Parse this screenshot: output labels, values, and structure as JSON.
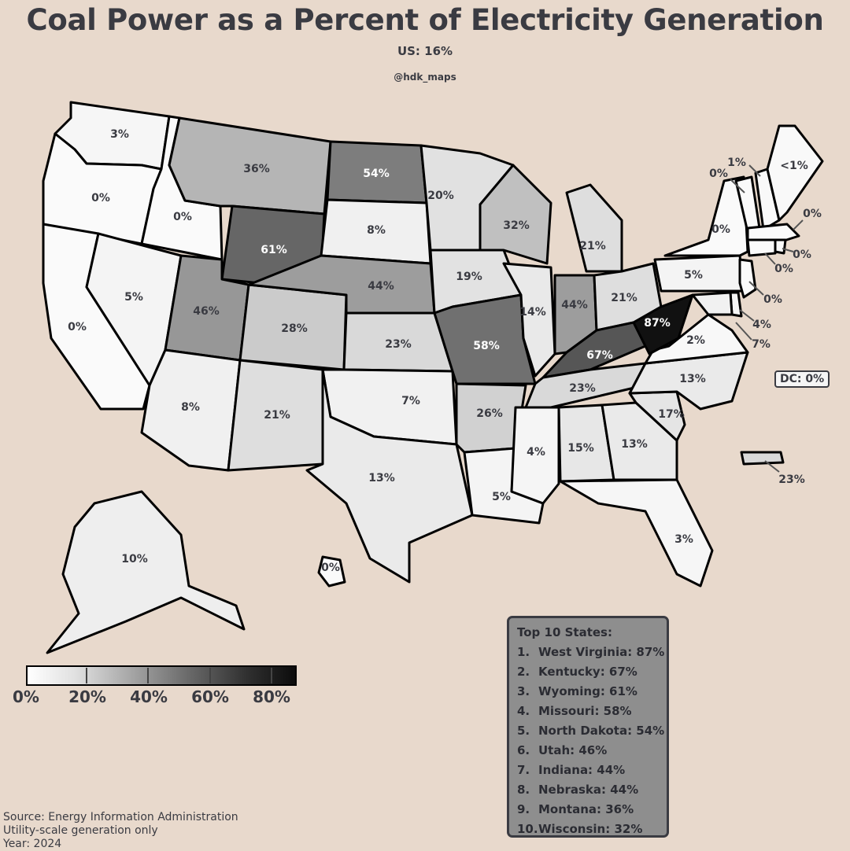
{
  "title": "Coal Power as a Percent of Electricity Generation",
  "subtitle": "US: 16%",
  "credit": "@hdk_maps",
  "dc_label": "DC: 0%",
  "states": [
    {
      "name": "Washington",
      "pct": 3,
      "label": "3%"
    },
    {
      "name": "Oregon",
      "pct": 0,
      "label": "0%"
    },
    {
      "name": "California",
      "pct": 0,
      "label": "0%"
    },
    {
      "name": "Idaho",
      "pct": 0,
      "label": "0%"
    },
    {
      "name": "Nevada",
      "pct": 5,
      "label": "5%"
    },
    {
      "name": "Montana",
      "pct": 36,
      "label": "36%"
    },
    {
      "name": "Wyoming",
      "pct": 61,
      "label": "61%"
    },
    {
      "name": "Utah",
      "pct": 46,
      "label": "46%"
    },
    {
      "name": "Arizona",
      "pct": 8,
      "label": "8%"
    },
    {
      "name": "Colorado",
      "pct": 28,
      "label": "28%"
    },
    {
      "name": "New Mexico",
      "pct": 21,
      "label": "21%"
    },
    {
      "name": "North Dakota",
      "pct": 54,
      "label": "54%"
    },
    {
      "name": "South Dakota",
      "pct": 8,
      "label": "8%"
    },
    {
      "name": "Nebraska",
      "pct": 44,
      "label": "44%"
    },
    {
      "name": "Kansas",
      "pct": 23,
      "label": "23%"
    },
    {
      "name": "Oklahoma",
      "pct": 7,
      "label": "7%"
    },
    {
      "name": "Texas",
      "pct": 13,
      "label": "13%"
    },
    {
      "name": "Minnesota",
      "pct": 20,
      "label": "20%"
    },
    {
      "name": "Iowa",
      "pct": 19,
      "label": "19%"
    },
    {
      "name": "Missouri",
      "pct": 58,
      "label": "58%"
    },
    {
      "name": "Arkansas",
      "pct": 26,
      "label": "26%"
    },
    {
      "name": "Louisiana",
      "pct": 5,
      "label": "5%"
    },
    {
      "name": "Wisconsin",
      "pct": 32,
      "label": "32%"
    },
    {
      "name": "Illinois",
      "pct": 14,
      "label": "14%"
    },
    {
      "name": "Michigan",
      "pct": 21,
      "label": "21%"
    },
    {
      "name": "Indiana",
      "pct": 44,
      "label": "44%"
    },
    {
      "name": "Ohio",
      "pct": 21,
      "label": "21%"
    },
    {
      "name": "Kentucky",
      "pct": 67,
      "label": "67%"
    },
    {
      "name": "Tennessee",
      "pct": 23,
      "label": "23%"
    },
    {
      "name": "Mississippi",
      "pct": 4,
      "label": "4%"
    },
    {
      "name": "Alabama",
      "pct": 15,
      "label": "15%"
    },
    {
      "name": "Georgia",
      "pct": 13,
      "label": "13%"
    },
    {
      "name": "Florida",
      "pct": 3,
      "label": "3%"
    },
    {
      "name": "South Carolina",
      "pct": 17,
      "label": "17%"
    },
    {
      "name": "North Carolina",
      "pct": 13,
      "label": "13%"
    },
    {
      "name": "Virginia",
      "pct": 2,
      "label": "2%"
    },
    {
      "name": "West Virginia",
      "pct": 87,
      "label": "87%"
    },
    {
      "name": "Pennsylvania",
      "pct": 5,
      "label": "5%"
    },
    {
      "name": "New York",
      "pct": 0,
      "label": "0%"
    },
    {
      "name": "Vermont",
      "pct": 0,
      "label": "0%"
    },
    {
      "name": "New Hampshire",
      "pct": 1,
      "label": "1%"
    },
    {
      "name": "Maine",
      "pct": 0.5,
      "label": "<1%"
    },
    {
      "name": "Massachusetts",
      "pct": 0,
      "label": "0%"
    },
    {
      "name": "Rhode Island",
      "pct": 0,
      "label": "0%"
    },
    {
      "name": "Connecticut",
      "pct": 0,
      "label": "0%"
    },
    {
      "name": "New Jersey",
      "pct": 0,
      "label": "0%"
    },
    {
      "name": "Delaware",
      "pct": 4,
      "label": "4%"
    },
    {
      "name": "Maryland",
      "pct": 7,
      "label": "7%"
    },
    {
      "name": "Alaska",
      "pct": 10,
      "label": "10%"
    },
    {
      "name": "Hawaii",
      "pct": 0,
      "label": "0%"
    },
    {
      "name": "Puerto Rico",
      "pct": 23,
      "label": "23%"
    }
  ],
  "legend": {
    "ticks": [
      "0%",
      "20%",
      "40%",
      "60%",
      "80%"
    ],
    "range": [
      0,
      87
    ]
  },
  "top10": {
    "heading": "Top 10 States:",
    "items": [
      {
        "rank": "1.",
        "text": "West Virginia: 87%"
      },
      {
        "rank": "2.",
        "text": "Kentucky: 67%"
      },
      {
        "rank": "3.",
        "text": "Wyoming: 61%"
      },
      {
        "rank": "4.",
        "text": "Missouri: 58%"
      },
      {
        "rank": "5.",
        "text": "North Dakota: 54%"
      },
      {
        "rank": "6.",
        "text": "Utah: 46%"
      },
      {
        "rank": "7.",
        "text": "Indiana: 44%"
      },
      {
        "rank": "8.",
        "text": "Nebraska: 44%"
      },
      {
        "rank": "9.",
        "text": "Montana: 36%"
      },
      {
        "rank": "10.",
        "text": "Wisconsin: 32%"
      }
    ]
  },
  "source": {
    "line1": "Source: Energy Information Administration",
    "line2": "Utility-scale generation only",
    "line3": "Year: 2024"
  }
}
